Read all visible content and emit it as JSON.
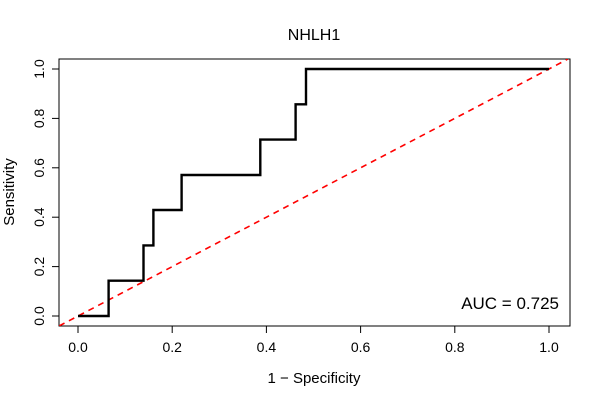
{
  "chart_data": {
    "type": "line",
    "title": "NHLH1",
    "xlabel": "1 − Specificity",
    "ylabel": "Sensitivity",
    "xlim": [
      0.0,
      1.0
    ],
    "ylim": [
      0.0,
      1.0
    ],
    "x_ticks": [
      "0.0",
      "0.2",
      "0.4",
      "0.6",
      "0.8",
      "1.0"
    ],
    "y_ticks": [
      "0.0",
      "0.2",
      "0.4",
      "0.6",
      "0.8",
      "1.0"
    ],
    "grid": false,
    "legend": "none",
    "annotation": "AUC = 0.725",
    "series": [
      {
        "name": "ROC curve",
        "color": "#000000",
        "style": "solid",
        "x": [
          0.0,
          0.065,
          0.065,
          0.139,
          0.139,
          0.16,
          0.16,
          0.22,
          0.22,
          0.387,
          0.387,
          0.462,
          0.462,
          0.484,
          0.484,
          1.0
        ],
        "y": [
          0.0,
          0.0,
          0.143,
          0.143,
          0.286,
          0.286,
          0.429,
          0.429,
          0.571,
          0.571,
          0.714,
          0.714,
          0.857,
          0.857,
          1.0,
          1.0
        ]
      },
      {
        "name": "Reference line",
        "color": "#ff0000",
        "style": "dashed",
        "x": [
          -0.04,
          1.04
        ],
        "y": [
          -0.04,
          1.04
        ]
      }
    ]
  }
}
